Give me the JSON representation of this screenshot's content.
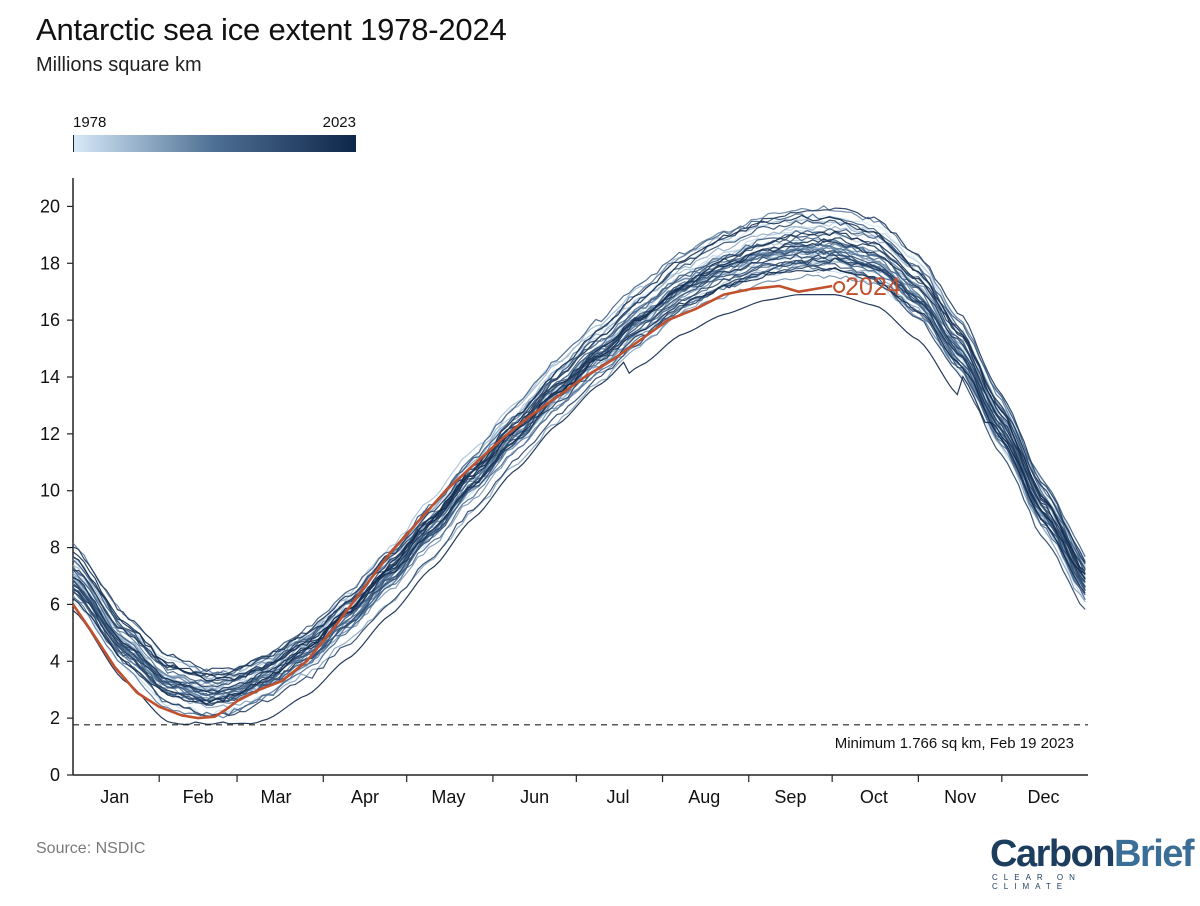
{
  "header": {
    "title": "Antarctic sea ice extent 1978-2024",
    "subtitle": "Millions square km"
  },
  "legend": {
    "start_label": "1978",
    "end_label": "2023",
    "color_start": "#d6e9f8",
    "color_mid": "#4d6f93",
    "color_end": "#0e2649"
  },
  "footer": {
    "source": "Source: NSDIC",
    "logo_carbon": "Carbon",
    "logo_brief": "Brief",
    "logo_tagline": "CLEAR ON CLIMATE"
  },
  "chart_data": {
    "type": "line",
    "title": "Antarctic sea ice extent 1978-2024",
    "ylabel": "Millions square km",
    "xlabel": "",
    "ylim": [
      0,
      21
    ],
    "xlim_day": [
      1,
      366
    ],
    "y_ticks": [
      0,
      2,
      4,
      6,
      8,
      10,
      12,
      14,
      16,
      18,
      20
    ],
    "month_labels": [
      "Jan",
      "Feb",
      "Mar",
      "Apr",
      "May",
      "Jun",
      "Jul",
      "Aug",
      "Sep",
      "Oct",
      "Nov",
      "Dec"
    ],
    "month_start_days": [
      1,
      32,
      60,
      91,
      121,
      152,
      182,
      213,
      244,
      274,
      305,
      335
    ],
    "month_mid_days": [
      16,
      46,
      74,
      106,
      136,
      167,
      197,
      228,
      259,
      289,
      320,
      350
    ],
    "climatology_days": [
      1,
      20,
      35,
      50,
      58,
      70,
      85,
      100,
      115,
      130,
      145,
      160,
      175,
      190,
      205,
      220,
      235,
      250,
      262,
      275,
      290,
      305,
      320,
      335,
      350,
      366
    ],
    "climatology_values": [
      7.0,
      4.6,
      3.3,
      2.9,
      3.0,
      3.5,
      4.4,
      5.7,
      7.2,
      8.8,
      10.5,
      12.1,
      13.6,
      14.9,
      16.1,
      17.2,
      17.9,
      18.4,
      18.6,
      18.6,
      18.2,
      17.0,
      15.0,
      12.3,
      9.4,
      6.8
    ],
    "historical_years": {
      "start": 1978,
      "end": 2023
    },
    "series": [
      {
        "name": "2024",
        "color": "#c1502e",
        "x": [
          1,
          8,
          16,
          24,
          32,
          40,
          46,
          52,
          56,
          60,
          68,
          76,
          85,
          95,
          105,
          115,
          125,
          135,
          145,
          155,
          165,
          175,
          185,
          195,
          205,
          215,
          225,
          235,
          245,
          255,
          262,
          268,
          274
        ],
        "y": [
          6.0,
          5.0,
          3.8,
          2.9,
          2.4,
          2.1,
          2.0,
          2.05,
          2.3,
          2.6,
          3.0,
          3.3,
          4.0,
          5.2,
          6.5,
          7.8,
          8.9,
          10.0,
          10.9,
          11.8,
          12.6,
          13.3,
          14.0,
          14.6,
          15.3,
          16.0,
          16.4,
          16.9,
          17.1,
          17.2,
          17.0,
          17.1,
          17.2
        ]
      }
    ],
    "end_marker_label": "2024",
    "annotations": [
      {
        "type": "hline",
        "y": 1.766,
        "label": "Minimum 1.766 sq km, Feb 19 2023"
      }
    ]
  }
}
